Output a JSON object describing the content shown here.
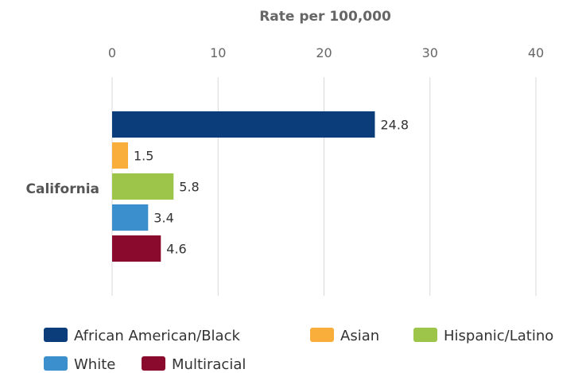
{
  "chart_data": {
    "type": "bar",
    "orientation": "horizontal",
    "categories": [
      "California"
    ],
    "series": [
      {
        "name": "African American/Black",
        "values": [
          24.8
        ],
        "color": "#0b3d7a"
      },
      {
        "name": "Asian",
        "values": [
          1.5
        ],
        "color": "#f9ad3a"
      },
      {
        "name": "Hispanic/Latino",
        "values": [
          5.8
        ],
        "color": "#9cc54a"
      },
      {
        "name": "White",
        "values": [
          3.4
        ],
        "color": "#3a8fcc"
      },
      {
        "name": "Multiracial",
        "values": [
          4.6
        ],
        "color": "#8a0a2d"
      }
    ],
    "data_labels": [
      "24.8",
      "1.5",
      "5.8",
      "3.4",
      "4.6"
    ],
    "xlabel": "Rate per 100,000",
    "xlim": [
      0,
      40
    ],
    "x_ticks": [
      "0",
      "10",
      "20",
      "30",
      "40"
    ],
    "axis_position": "top",
    "grid": true,
    "legend_position": "bottom"
  }
}
